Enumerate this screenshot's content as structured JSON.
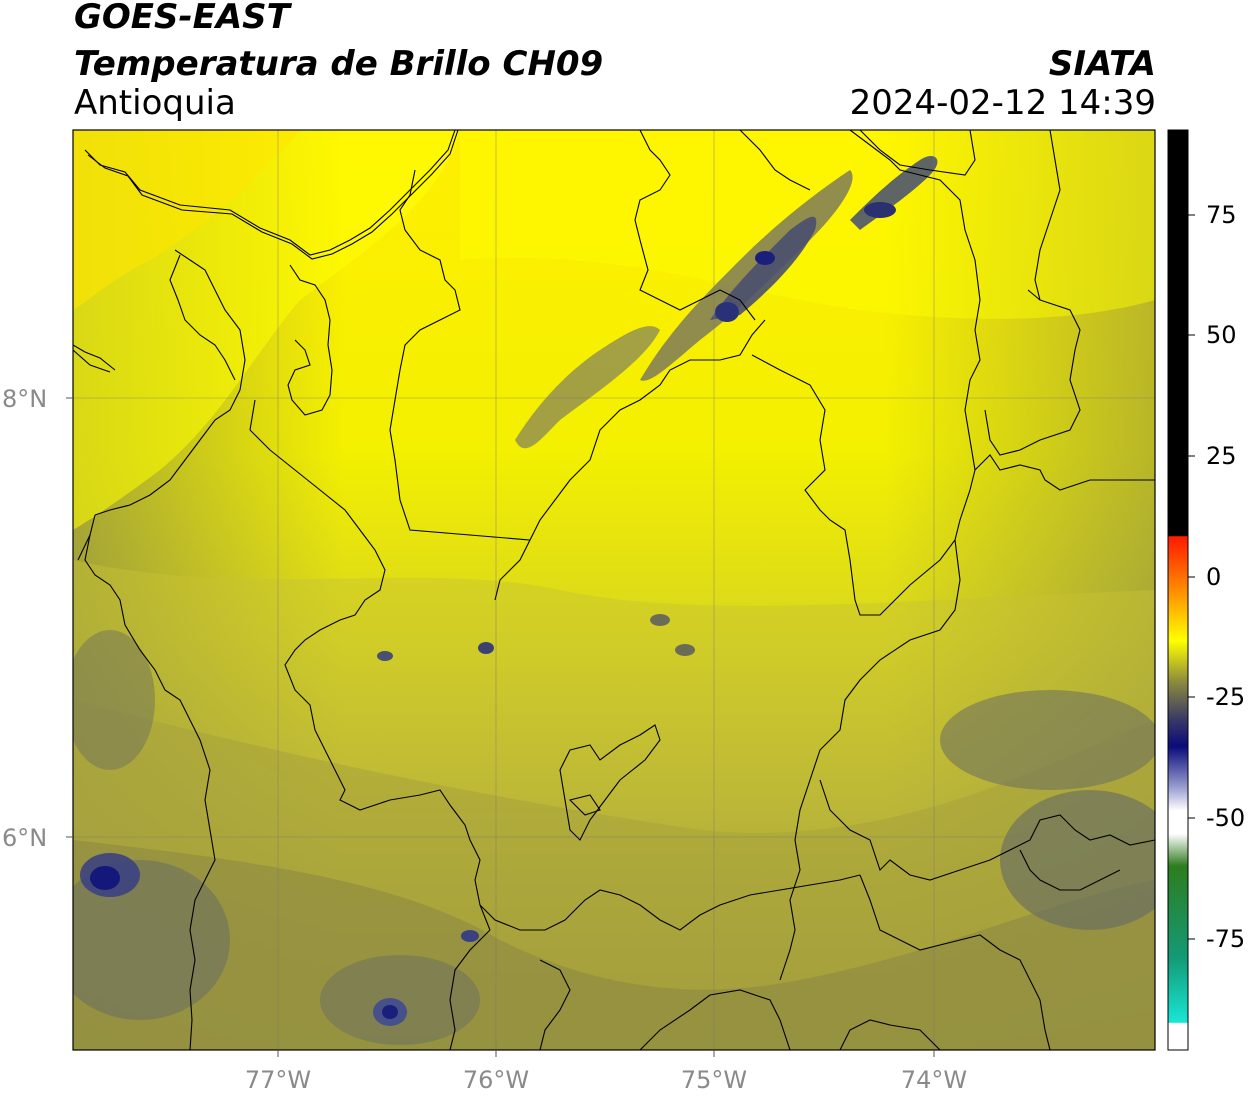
{
  "header": {
    "satellite": "GOES-EAST",
    "product": "Temperatura de Brillo CH09",
    "region": "Antioquia",
    "org": "SIATA",
    "datetime": "2024-02-12 14:39"
  },
  "map": {
    "lat_labels": [
      "8°N",
      "6°N"
    ],
    "lon_labels": [
      "77°W",
      "76°W",
      "75°W",
      "74°W"
    ],
    "lon_range": [
      -77.95,
      -73.0
    ],
    "lat_range": [
      5.0,
      9.2
    ]
  },
  "colorbar": {
    "ticks": [
      "75",
      "50",
      "25",
      "0",
      "-25",
      "-50",
      "-75"
    ],
    "colors": {
      "black": "#000000",
      "red": "#ff1a00",
      "orange": "#ff8c00",
      "yellow": "#ffff00",
      "olive": "#7f7f3a",
      "navy": "#0b0b7a",
      "white": "#ffffff",
      "green": "#2e7d1e",
      "cyan": "#19e6d5"
    }
  },
  "field_colors": {
    "bright_yellow": "#ffff00",
    "yellow": "#f0ee10",
    "yellow_olive": "#d8d520",
    "olive_light": "#b5b03a",
    "olive": "#9a9640",
    "olive_dark": "#7b7a4b",
    "gray_blue": "#616a6c",
    "deep_blue": "#1a1f7a"
  }
}
